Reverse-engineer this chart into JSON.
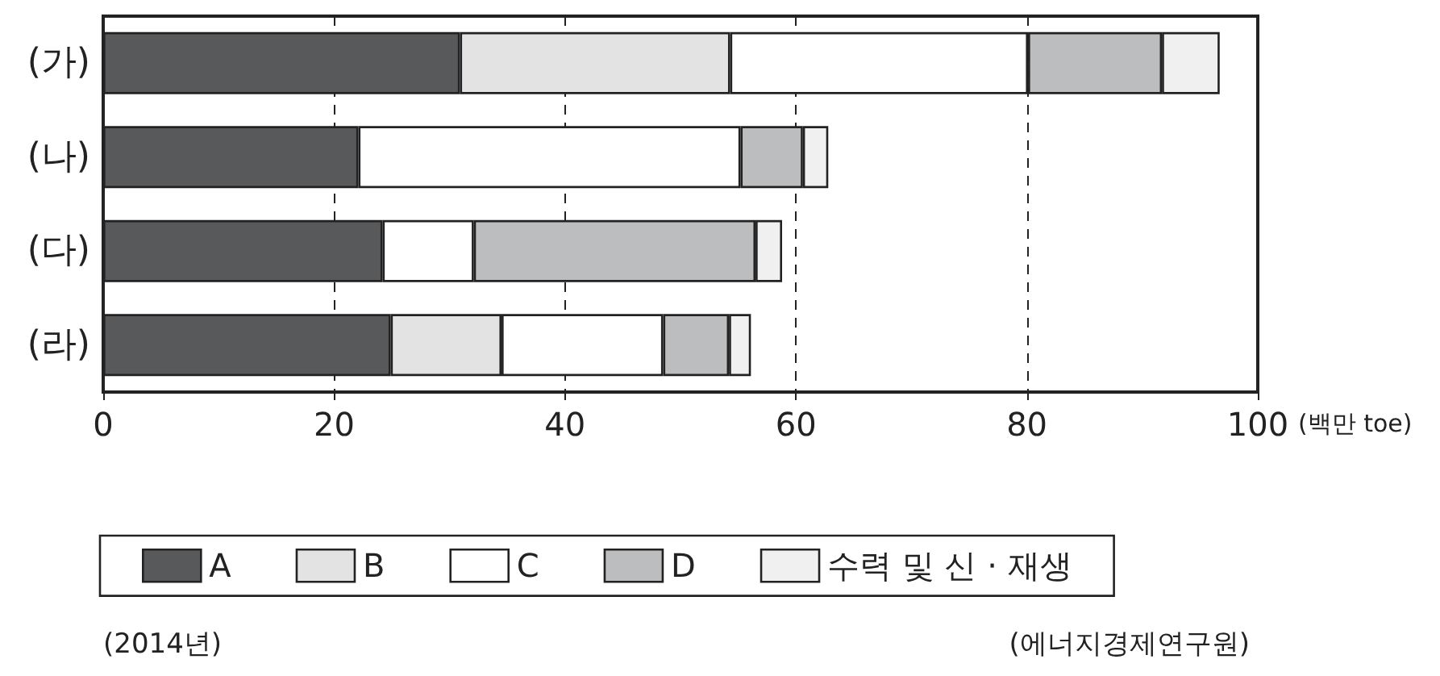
{
  "chart_data": {
    "type": "bar",
    "orientation": "horizontal",
    "stacked": true,
    "categories": [
      "(가)",
      "(나)",
      "(다)",
      "(라)"
    ],
    "series": [
      {
        "name": "A",
        "color": "#58595b",
        "values": [
          30.9,
          22.1,
          24.2,
          24.9
        ]
      },
      {
        "name": "B",
        "color": "#e3e3e3",
        "values": [
          23.4,
          null,
          null,
          9.6
        ]
      },
      {
        "name": "C",
        "color": "#ffffff",
        "values": [
          25.8,
          33.1,
          7.9,
          14.0
        ]
      },
      {
        "name": "D",
        "color": "#bcbdbf",
        "values": [
          11.6,
          5.4,
          24.4,
          5.7
        ]
      },
      {
        "name": "수력 및 신 · 재생",
        "color": "#f0f0f0",
        "values": [
          5.0,
          2.2,
          2.3,
          1.9
        ]
      }
    ],
    "xlabel": "(백만 toe)",
    "xlim": [
      0,
      100
    ],
    "xticks": [
      0,
      20,
      40,
      60,
      80,
      100
    ],
    "grid": "x",
    "legend": "bottom",
    "annotations": [
      "(2014년)",
      "(에너지경제연구원)"
    ]
  }
}
